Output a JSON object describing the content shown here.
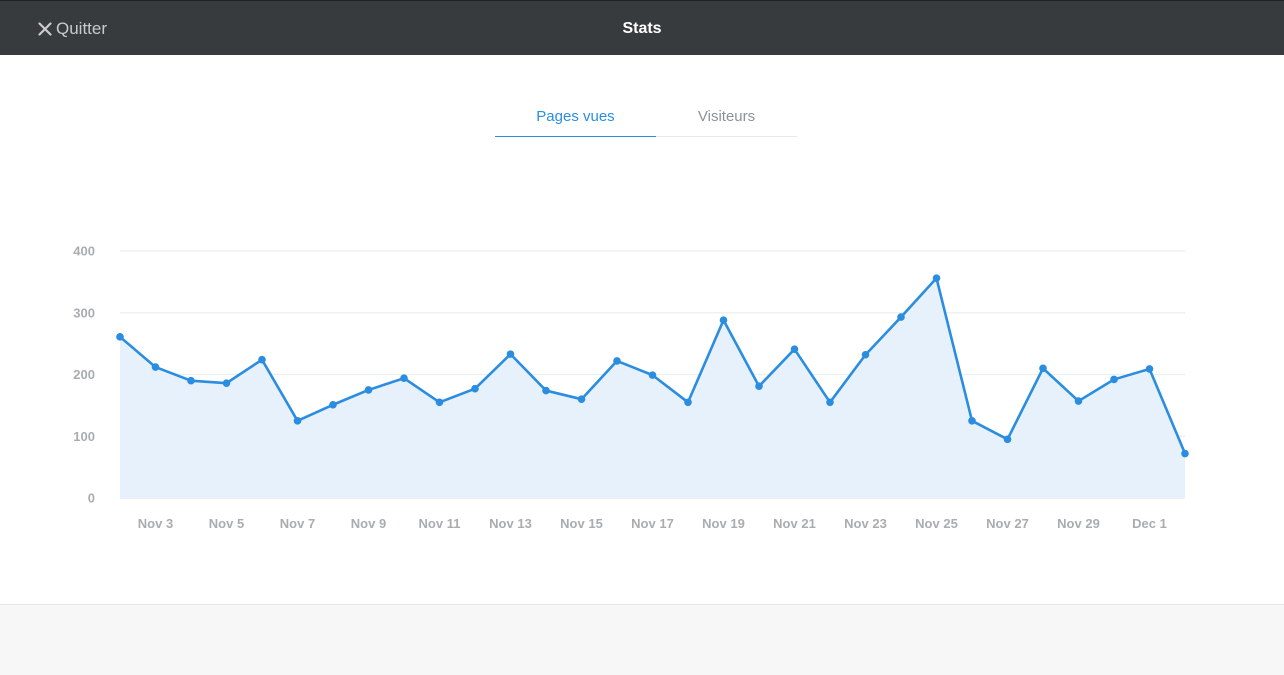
{
  "header": {
    "quit_label": "Quitter",
    "title": "Stats"
  },
  "tabs": [
    {
      "label": "Pages vues",
      "active": true
    },
    {
      "label": "Visiteurs",
      "active": false
    }
  ],
  "colors": {
    "accent": "#2b8de0",
    "area_fill": "#e6f1fb",
    "topbar": "#373b3e"
  },
  "chart_data": {
    "type": "area",
    "title": "",
    "xlabel": "",
    "ylabel": "",
    "ylim": [
      0,
      400
    ],
    "yticks": [
      "0",
      "100",
      "200",
      "300",
      "400"
    ],
    "grid": true,
    "x": [
      "Nov 2",
      "Nov 3",
      "Nov 4",
      "Nov 5",
      "Nov 6",
      "Nov 7",
      "Nov 8",
      "Nov 9",
      "Nov 10",
      "Nov 11",
      "Nov 12",
      "Nov 13",
      "Nov 14",
      "Nov 15",
      "Nov 16",
      "Nov 17",
      "Nov 18",
      "Nov 19",
      "Nov 20",
      "Nov 21",
      "Nov 22",
      "Nov 23",
      "Nov 24",
      "Nov 25",
      "Nov 26",
      "Nov 27",
      "Nov 28",
      "Nov 29",
      "Nov 30",
      "Dec 1",
      "Dec 2"
    ],
    "xtick_labels": [
      "Nov 3",
      "Nov 5",
      "Nov 7",
      "Nov 9",
      "Nov 11",
      "Nov 13",
      "Nov 15",
      "Nov 17",
      "Nov 19",
      "Nov 21",
      "Nov 23",
      "Nov 25",
      "Nov 27",
      "Nov 29",
      "Dec 1"
    ],
    "series": [
      {
        "values": [
          261,
          212,
          190,
          186,
          224,
          125,
          151,
          175,
          194,
          155,
          177,
          233,
          174,
          160,
          222,
          199,
          155,
          288,
          181,
          241,
          155,
          232,
          293,
          356,
          125,
          95,
          210,
          157,
          192,
          209,
          72
        ]
      }
    ]
  }
}
